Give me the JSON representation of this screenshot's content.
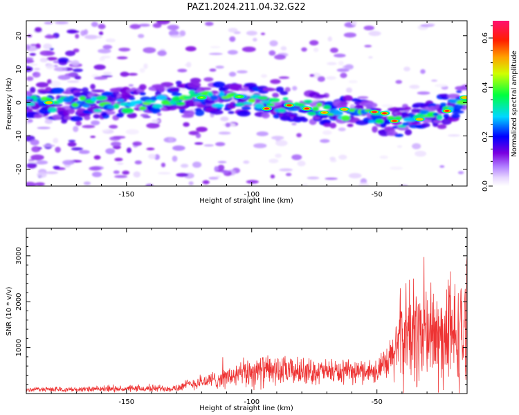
{
  "figure": {
    "title": "PAZ1.2024.211.04.32.G22"
  },
  "chart_data": [
    {
      "type": "heatmap",
      "title": "PAZ1.2024.211.04.32.G22",
      "xlabel": "Height of straight line (km)",
      "ylabel": "Frequency (Hz)",
      "xlim": [
        -190,
        -14
      ],
      "ylim": [
        -25,
        24.5
      ],
      "x_ticks": [
        -150,
        -100,
        -50
      ],
      "y_ticks": [
        -20,
        -10,
        0,
        10,
        20
      ],
      "colorbar": {
        "label": "Normalized spectral amplitude",
        "range": [
          0.0,
          0.67
        ],
        "ticks": [
          0.0,
          0.2,
          0.4,
          0.6
        ],
        "colormap": [
          "#ffffff",
          "#d9c2ff",
          "#8a2be2",
          "#0000ff",
          "#00ffff",
          "#00ff00",
          "#ffff00",
          "#ff8000",
          "#ff0000",
          "#ff1493"
        ]
      },
      "ridge": {
        "description_points_x": [
          -190,
          -170,
          -150,
          -130,
          -120,
          -100,
          -80,
          -60,
          -40,
          -25,
          -14
        ],
        "description_points_y": [
          0,
          -0.5,
          -0.5,
          1.5,
          1,
          1,
          -1.5,
          -3,
          -5.5,
          -3,
          1.5
        ],
        "peaks": [
          {
            "x": -94,
            "y": -1.8,
            "amp": 0.62
          },
          {
            "x": -85,
            "y": -0.8,
            "amp": 0.55
          },
          {
            "x": -78,
            "y": -1.8,
            "amp": 0.6
          },
          {
            "x": -71,
            "y": -3,
            "amp": 0.5
          },
          {
            "x": -63,
            "y": -2,
            "amp": 0.48
          },
          {
            "x": -51,
            "y": -2.8,
            "amp": 0.65
          },
          {
            "x": -47,
            "y": -3.2,
            "amp": 0.6
          },
          {
            "x": -43,
            "y": -5.5,
            "amp": 0.55
          },
          {
            "x": -33,
            "y": -5,
            "amp": 0.45
          },
          {
            "x": -22,
            "y": -2.5,
            "amp": 0.55
          },
          {
            "x": -120,
            "y": 1.5,
            "amp": 0.42
          },
          {
            "x": -105,
            "y": 1.8,
            "amp": 0.38
          },
          {
            "x": -181,
            "y": 0,
            "amp": 0.45
          },
          {
            "x": -15,
            "y": 1.5,
            "amp": 0.45
          }
        ]
      }
    },
    {
      "type": "line",
      "xlabel": "Height of straight line (km)",
      "ylabel": "SNR (10 * v/v)",
      "xlim": [
        -190,
        -14
      ],
      "ylim": [
        0,
        3600
      ],
      "x_ticks": [
        -150,
        -100,
        -50
      ],
      "y_ticks": [
        1000,
        2000,
        3000
      ],
      "color": "#ee3333",
      "envelope": {
        "x": [
          -190,
          -170,
          -150,
          -130,
          -125,
          -115,
          -105,
          -100,
          -90,
          -80,
          -70,
          -60,
          -55,
          -50,
          -45,
          -42,
          -38,
          -30,
          -25,
          -20,
          -14
        ],
        "mean": [
          90,
          90,
          100,
          120,
          200,
          300,
          400,
          480,
          500,
          480,
          480,
          450,
          500,
          500,
          650,
          1100,
          1300,
          1300,
          1150,
          1200,
          1350
        ],
        "amplitude": [
          60,
          70,
          80,
          110,
          150,
          230,
          350,
          450,
          400,
          350,
          330,
          300,
          320,
          350,
          550,
          1150,
          1500,
          1500,
          1400,
          1500,
          1400
        ]
      }
    }
  ]
}
